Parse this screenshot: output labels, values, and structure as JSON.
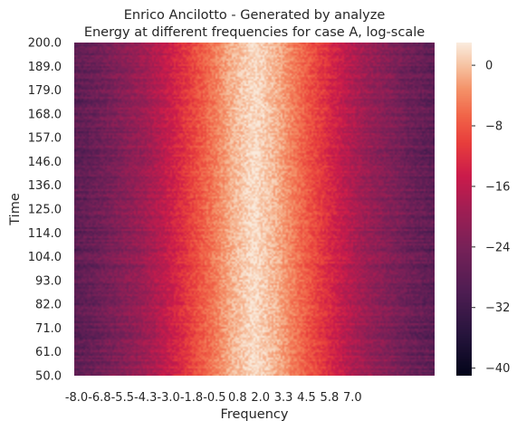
{
  "chart_data": {
    "type": "heatmap",
    "title": "Enrico Ancilotto - Generated by analyze",
    "subtitle": "Energy at different frequencies for case A, log-scale",
    "xlabel": "Frequency",
    "ylabel": "Time",
    "x_ticks": [
      "-8.0",
      "-6.8",
      "-5.5",
      "-4.3",
      "-3.0",
      "-1.8",
      "-0.5",
      "0.8",
      "2.0",
      "3.3",
      "4.5",
      "5.8",
      "7.0"
    ],
    "y_ticks": [
      "200.0",
      "189.0",
      "179.0",
      "168.0",
      "157.0",
      "146.0",
      "136.0",
      "125.0",
      "114.0",
      "104.0",
      "93.0",
      "82.0",
      "71.0",
      "61.0",
      "50.0"
    ],
    "x_range": [
      -8.0,
      8.0
    ],
    "y_range": [
      50.0,
      200.0
    ],
    "colorbar": {
      "colormap": "rocket",
      "range": [
        -41,
        3
      ],
      "ticks": [
        "0",
        "−8",
        "−16",
        "−24",
        "−32",
        "−40"
      ],
      "tick_values": [
        0,
        -8,
        -16,
        -24,
        -32,
        -40
      ]
    },
    "energy_profile": {
      "description_values": "log-energy vs frequency (approx, symmetric about 0)",
      "frequency": [
        -8.0,
        -7.0,
        -6.0,
        -5.0,
        -4.0,
        -3.0,
        -2.0,
        -1.0,
        0.0,
        1.0,
        2.0,
        3.0,
        4.0,
        5.0,
        6.0,
        7.0,
        8.0
      ],
      "value": [
        -28,
        -26,
        -23,
        -20,
        -16,
        -11,
        -6,
        -1,
        2,
        -1,
        -6,
        -11,
        -16,
        -20,
        -23,
        -26,
        -28
      ]
    }
  }
}
